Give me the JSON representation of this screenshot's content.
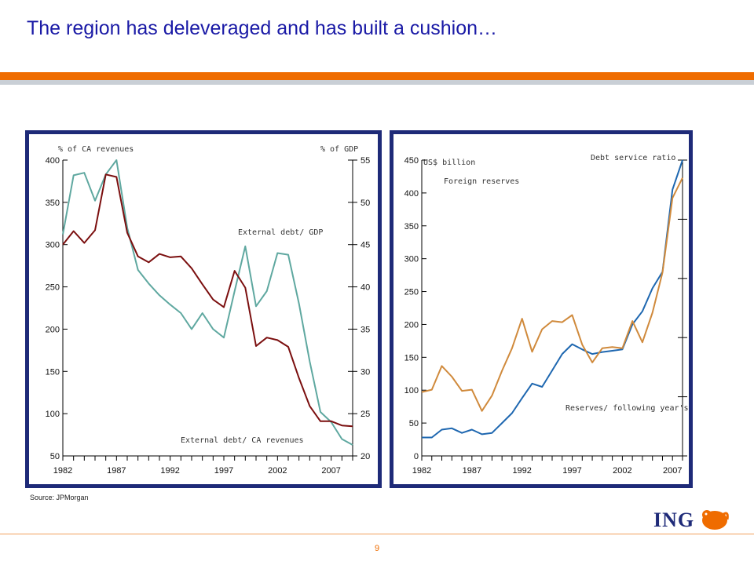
{
  "slide": {
    "title": "The region has deleveraged and has built a cushion…",
    "source": "Source: JPMorgan",
    "page_number": "9",
    "logo_text": "ING"
  },
  "colors": {
    "title": "#1a1aa6",
    "accent_orange": "#ef6c00",
    "panel_border": "#1e2a78",
    "teal_series": "#5fa8a0",
    "darkred_series": "#7b0f0f",
    "blue_series": "#1e67b0",
    "tan_series": "#d08a3c"
  },
  "chart_data": [
    {
      "type": "line",
      "left_axis_label": "% of CA revenues",
      "right_axis_label": "% of GDP",
      "x_ticks": [
        "1982",
        "1987",
        "1992",
        "1997",
        "2002",
        "2007"
      ],
      "xlim": [
        1982,
        2009
      ],
      "ylim_left": [
        50,
        400
      ],
      "yticks_left": [
        50,
        100,
        150,
        200,
        250,
        300,
        350,
        400
      ],
      "ylim_right": [
        20,
        55
      ],
      "yticks_right": [
        20,
        25,
        30,
        35,
        40,
        45,
        50,
        55
      ],
      "series": [
        {
          "name": "External debt/ CA revenues",
          "axis": "left",
          "x": [
            1982,
            1983,
            1984,
            1985,
            1986,
            1987,
            1988,
            1989,
            1990,
            1991,
            1992,
            1993,
            1994,
            1995,
            1996,
            1997,
            1998,
            1999,
            2000,
            2001,
            2002,
            2003,
            2004,
            2005,
            2006,
            2007,
            2008,
            2009
          ],
          "values": [
            312,
            382,
            385,
            352,
            383,
            400,
            320,
            270,
            254,
            240,
            229,
            219,
            200,
            219,
            200,
            190,
            245,
            298,
            227,
            245,
            290,
            288,
            230,
            162,
            102,
            90,
            70,
            63
          ]
        },
        {
          "name": "External debt/ GDP",
          "axis": "right",
          "x": [
            1982,
            1983,
            1984,
            1985,
            1986,
            1987,
            1988,
            1989,
            1990,
            1991,
            1992,
            1993,
            1994,
            1995,
            1996,
            1997,
            1998,
            1999,
            2000,
            2001,
            2002,
            2003,
            2004,
            2005,
            2006,
            2007,
            2008,
            2009
          ],
          "values": [
            45.0,
            46.6,
            45.2,
            46.7,
            53.3,
            53.0,
            46.4,
            43.6,
            42.9,
            43.9,
            43.5,
            43.6,
            42.2,
            40.3,
            38.5,
            37.6,
            41.9,
            39.9,
            33.0,
            34.0,
            33.7,
            32.9,
            29.2,
            25.9,
            24.1,
            24.1,
            23.6,
            23.5
          ]
        }
      ]
    },
    {
      "type": "line",
      "left_axis_label": "US$ billion",
      "right_axis_label": "Debt service ratio",
      "x_ticks": [
        "1982",
        "1987",
        "1992",
        "1997",
        "2002",
        "2007"
      ],
      "xlim": [
        1982,
        2008
      ],
      "ylim_left": [
        0,
        450
      ],
      "yticks_left": [
        0,
        50,
        100,
        150,
        200,
        250,
        300,
        350,
        400,
        450
      ],
      "ylim_right": [
        0,
        2.5
      ],
      "yticks_right": [
        0,
        0.5,
        1,
        1.5,
        2,
        2.5
      ],
      "series": [
        {
          "name": "Foreign reserves",
          "axis": "left",
          "x": [
            1982,
            1983,
            1984,
            1985,
            1986,
            1987,
            1988,
            1989,
            1990,
            1991,
            1992,
            1993,
            1994,
            1995,
            1996,
            1997,
            1998,
            1999,
            2000,
            2001,
            2002,
            2003,
            2004,
            2005,
            2006,
            2007,
            2008
          ],
          "values": [
            28,
            28,
            40,
            42,
            35,
            40,
            33,
            35,
            50,
            65,
            88,
            110,
            105,
            130,
            155,
            170,
            162,
            155,
            158,
            160,
            162,
            200,
            220,
            255,
            280,
            405,
            450
          ]
        },
        {
          "name": "Reserves/ following year's debt service",
          "axis": "right",
          "x": [
            1982,
            1983,
            1984,
            1985,
            1986,
            1987,
            1988,
            1989,
            1990,
            1991,
            1992,
            1993,
            1994,
            1995,
            1996,
            1997,
            1998,
            1999,
            2000,
            2001,
            2002,
            2003,
            2004,
            2005,
            2006,
            2007,
            2008
          ],
          "values": [
            0.54,
            0.56,
            0.76,
            0.67,
            0.55,
            0.56,
            0.38,
            0.51,
            0.72,
            0.91,
            1.16,
            0.88,
            1.07,
            1.14,
            1.13,
            1.19,
            0.94,
            0.79,
            0.91,
            0.92,
            0.91,
            1.14,
            0.96,
            1.21,
            1.55,
            2.18,
            2.35
          ]
        }
      ]
    }
  ]
}
